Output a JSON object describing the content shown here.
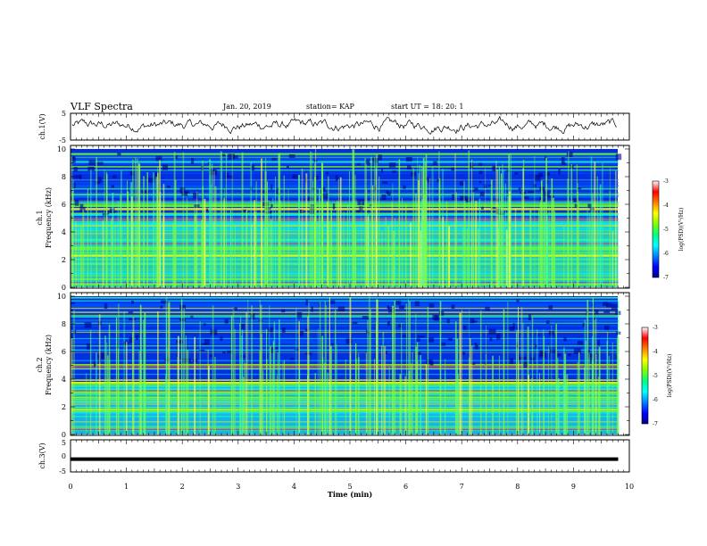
{
  "header": {
    "title": "VLF Spectra",
    "date": "Jan. 20, 2019",
    "station": "station= KAP",
    "start": "start  UT =   18: 20: 1"
  },
  "chart_data": [
    {
      "type": "line",
      "name": "ch1-waveform",
      "ylabel": "ch.1(V)",
      "ylim": [
        -5,
        5
      ],
      "yticks": [
        "5",
        "-5"
      ],
      "xlim": [
        0,
        10
      ],
      "x_end": 9.8,
      "pattern": {
        "mean": 0.5,
        "amplitude": 2.5,
        "samples": 560
      }
    },
    {
      "type": "heatmap",
      "name": "ch1-spectrogram",
      "ylabel": "ch.1",
      "ylabel2": "Frequency  (kHz)",
      "ylim": [
        0,
        10
      ],
      "yticks": [
        "0",
        "2",
        "4",
        "6",
        "8",
        "10"
      ],
      "xlim": [
        0,
        10
      ],
      "x_end": 9.8,
      "colorbar": {
        "label": "log(PSD)(V²/Hz)",
        "range": [
          -7,
          -3
        ],
        "ticks": [
          "-3",
          "-4",
          "-5",
          "-6",
          "-7"
        ],
        "colors": [
          "#000090",
          "#0000ff",
          "#0080ff",
          "#00ffff",
          "#00ff80",
          "#80ff00",
          "#ffff00",
          "#ff8000",
          "#ff0000",
          "#ffffff"
        ]
      }
    },
    {
      "type": "heatmap",
      "name": "ch2-spectrogram",
      "ylabel": "ch.2",
      "ylabel2": "Frequency  (kHz)",
      "ylim": [
        0,
        10
      ],
      "yticks": [
        "0",
        "2",
        "4",
        "6",
        "8",
        "10"
      ],
      "xlim": [
        0,
        10
      ],
      "x_end": 9.8,
      "colorbar": {
        "label": "log(PSD)(V²/Hz)",
        "range": [
          -7,
          -3
        ],
        "ticks": [
          "-3",
          "-4",
          "-5",
          "-6",
          "-7"
        ],
        "colors": [
          "#000090",
          "#0000ff",
          "#0080ff",
          "#00ffff",
          "#00ff80",
          "#80ff00",
          "#ffff00",
          "#ff8000",
          "#ff0000",
          "#ffffff"
        ]
      }
    },
    {
      "type": "line",
      "name": "ch3-waveform",
      "ylabel": "ch.3(V)",
      "ylim": [
        -5,
        5
      ],
      "yticks": [
        "5",
        "0",
        "-5"
      ],
      "xlim": [
        0,
        10
      ],
      "x_end": 9.8,
      "values_constant": -1.0,
      "xlabel": "Time  (min)",
      "xticks": [
        "0",
        "1",
        "2",
        "3",
        "4",
        "5",
        "6",
        "7",
        "8",
        "9",
        "10"
      ]
    }
  ]
}
